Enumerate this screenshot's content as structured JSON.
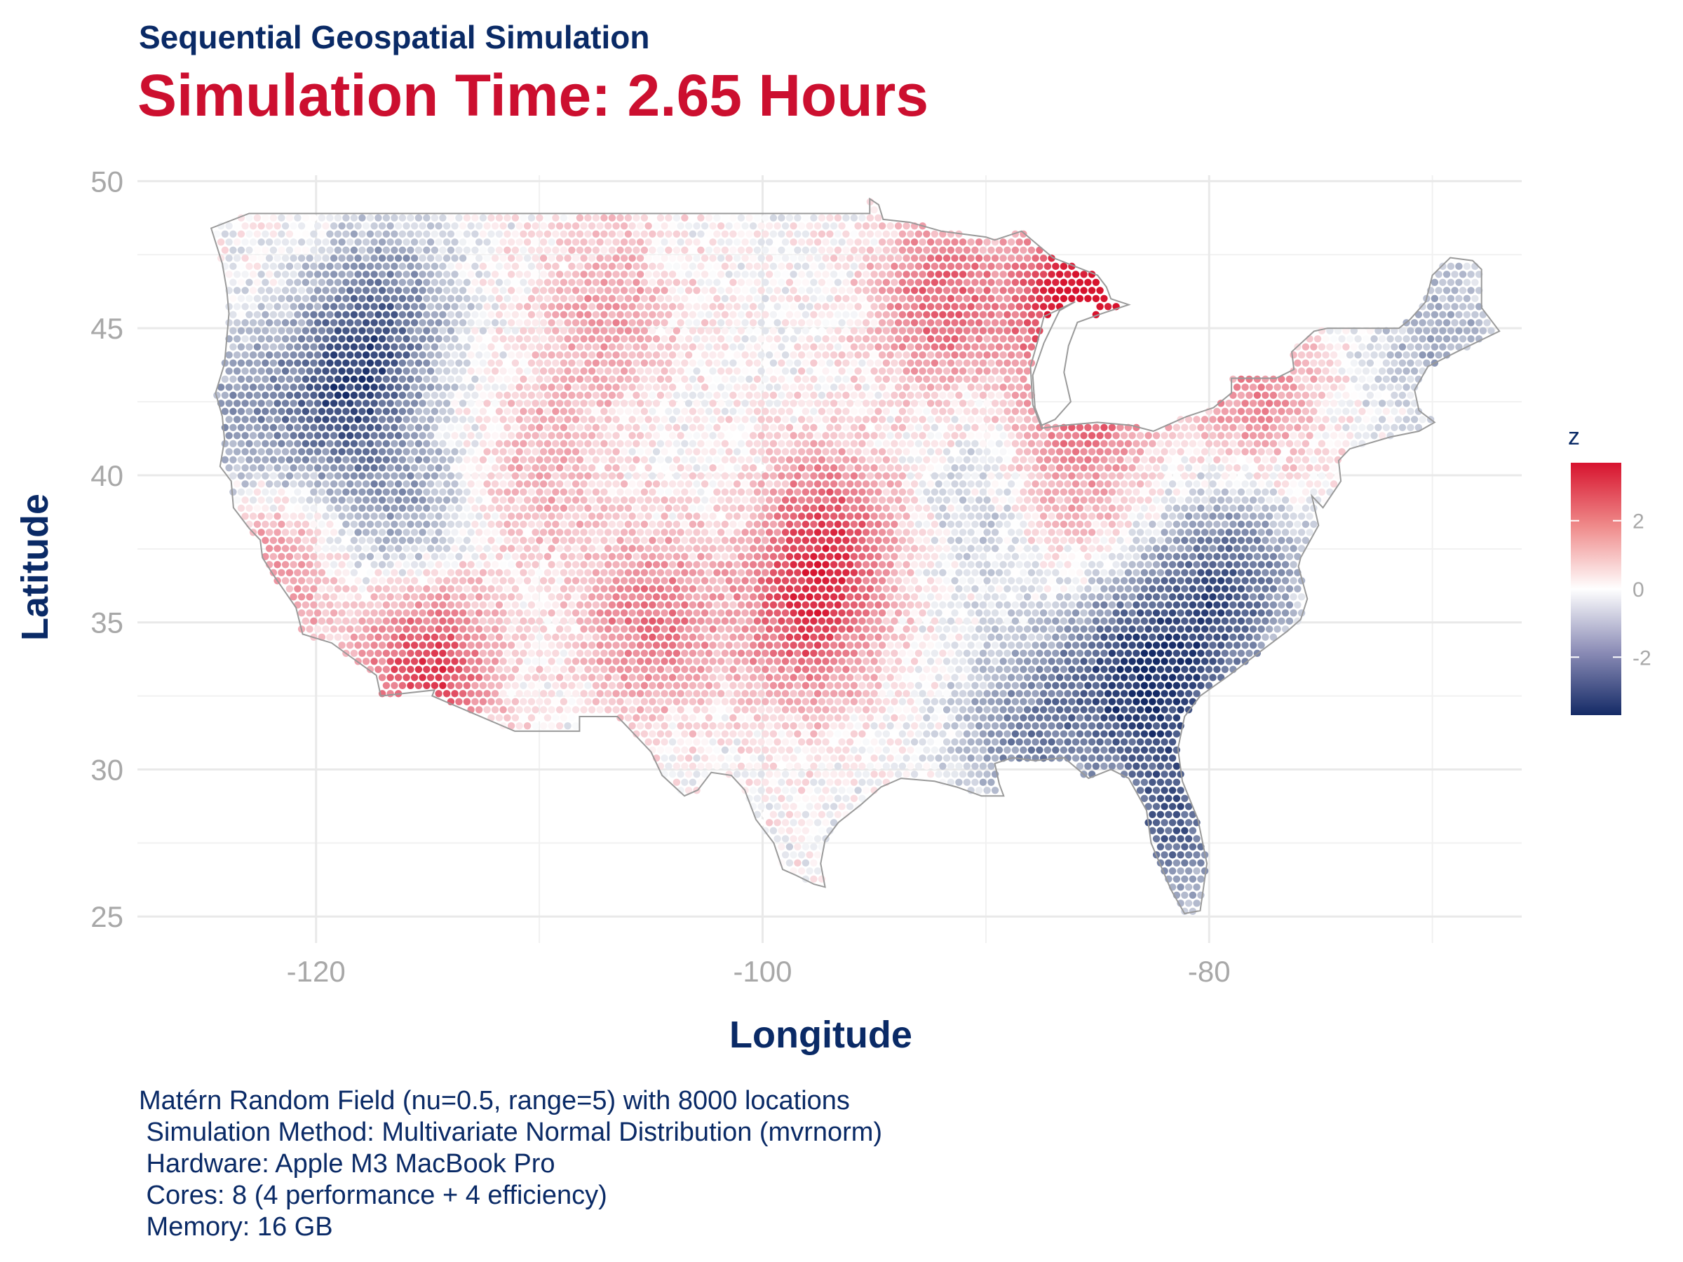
{
  "header": {
    "subtitle": "Sequential Geospatial Simulation",
    "title": "Simulation Time: 2.65 Hours"
  },
  "axes": {
    "xlabel": "Longitude",
    "ylabel": "Latitude",
    "xlim": [
      -128,
      -66
    ],
    "ylim": [
      24.1,
      50.2
    ],
    "xticks": [
      -120,
      -100,
      -80
    ],
    "yticks": [
      25,
      30,
      35,
      40,
      45,
      50
    ],
    "x_minor": [
      -110,
      -90,
      -70
    ],
    "y_minor": [
      27.5,
      32.5,
      37.5,
      42.5,
      47.5
    ],
    "grid": true
  },
  "legend": {
    "title": "z",
    "ticks": [
      2,
      0,
      -2
    ],
    "range": [
      -3.7,
      3.7
    ],
    "placement": "right"
  },
  "colors": {
    "low": "#142a66",
    "mid": "#ffffff",
    "high": "#d7132e",
    "title": "#cc0f2f",
    "text_navy": "#0a2a66"
  },
  "caption": {
    "line1": "Matérn Random Field (nu=0.5, range=5) with 8000 locations",
    "line2": " Simulation Method: Multivariate Normal Distribution (mvrnorm)",
    "line3": " Hardware: Apple M3 MacBook Pro",
    "line4": " Cores: 8 (4 performance + 4 efficiency)",
    "line5": " Memory: 16 GB"
  },
  "chart_data": {
    "type": "scatter",
    "subtype": "geospatial point field over contiguous USA",
    "n_locations": 8000,
    "field": "z",
    "hotspots": [
      {
        "lon": -115,
        "lat": 33.5,
        "z": 3.0
      },
      {
        "lon": -85.5,
        "lat": 46.3,
        "z": 3.5
      },
      {
        "lon": -97,
        "lat": 38,
        "z": 2.3
      },
      {
        "lon": -98,
        "lat": 35,
        "z": 2.2
      },
      {
        "lon": -105,
        "lat": 35,
        "z": 2.0
      },
      {
        "lon": -92,
        "lat": 46,
        "z": 2.2
      },
      {
        "lon": -85,
        "lat": 43.5,
        "z": 1.8
      },
      {
        "lon": -78,
        "lat": 43,
        "z": 1.6
      },
      {
        "lon": -122,
        "lat": 36.5,
        "z": 1.5
      },
      {
        "lon": -87,
        "lat": 39.5,
        "z": 1.6
      },
      {
        "lon": -107,
        "lat": 45.5,
        "z": 1.3
      },
      {
        "lon": -110,
        "lat": 40,
        "z": 1.0
      }
    ],
    "coldspots": [
      {
        "lon": -119,
        "lat": 42.5,
        "z": -2.5
      },
      {
        "lon": -117,
        "lat": 45.5,
        "z": -2.0
      },
      {
        "lon": -81.5,
        "lat": 28.5,
        "z": -2.6
      },
      {
        "lon": -82,
        "lat": 33.5,
        "z": -2.6
      },
      {
        "lon": -79,
        "lat": 36.5,
        "z": -2.4
      },
      {
        "lon": -85,
        "lat": 33,
        "z": -1.6
      },
      {
        "lon": -88.5,
        "lat": 31,
        "z": -1.6
      },
      {
        "lon": -116,
        "lat": 38.5,
        "z": -1.3
      },
      {
        "lon": -124,
        "lat": 42,
        "z": -1.4
      },
      {
        "lon": -70,
        "lat": 45,
        "z": -1.2
      },
      {
        "lon": -89,
        "lat": 39,
        "z": -1.2
      }
    ]
  }
}
